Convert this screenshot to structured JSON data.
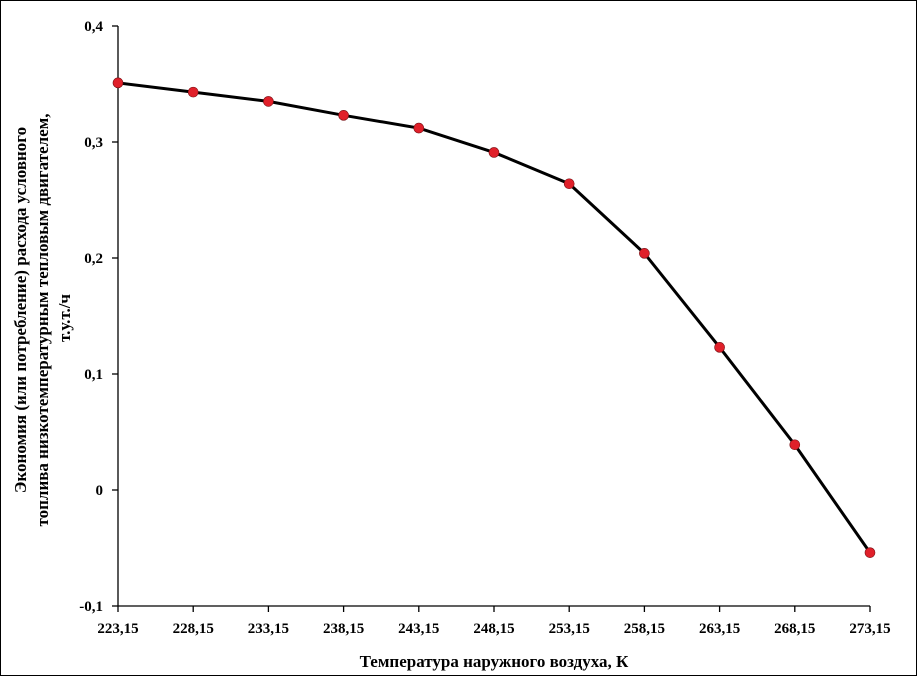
{
  "chart_data": {
    "type": "line",
    "x": [
      "223,15",
      "228,15",
      "233,15",
      "238,15",
      "243,15",
      "248,15",
      "253,15",
      "258,15",
      "263,15",
      "268,15",
      "273,15"
    ],
    "series": [
      {
        "values": [
          0.351,
          0.343,
          0.335,
          0.323,
          0.312,
          0.291,
          0.264,
          0.204,
          0.123,
          0.039,
          -0.054
        ],
        "line_color": "#000000",
        "marker_color": "#e0202a"
      }
    ],
    "xlabel": "Температура наружного воздуха, К",
    "ylabel_lines": [
      "Экономия (или потребление) расхода условного",
      "топлива  низкотемпературным тепловым двигателем,",
      "т.у.т./ч"
    ],
    "yticks": [
      "-0,1",
      "0",
      "0,1",
      "0,2",
      "0,3",
      "0,4"
    ],
    "ylim": [
      -0.1,
      0.4
    ],
    "grid": false
  }
}
